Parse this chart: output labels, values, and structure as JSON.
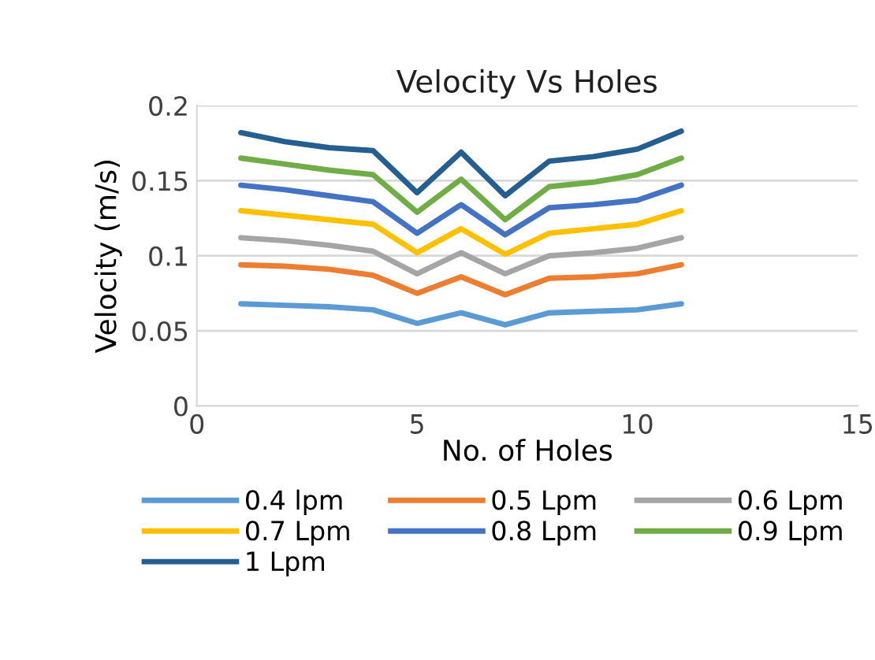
{
  "chart_data": {
    "type": "line",
    "title": "Velocity Vs Holes",
    "xlabel": "No. of Holes",
    "ylabel": "Velocity (m/s)",
    "x": [
      1,
      2,
      3,
      4,
      5,
      6,
      7,
      8,
      9,
      10,
      11
    ],
    "series": [
      {
        "name": "0.4 lpm",
        "color": "#5b9bd5",
        "values": [
          0.068,
          0.067,
          0.066,
          0.064,
          0.055,
          0.062,
          0.054,
          0.062,
          0.063,
          0.064,
          0.068
        ]
      },
      {
        "name": "0.5 Lpm",
        "color": "#ed7d31",
        "values": [
          0.094,
          0.093,
          0.091,
          0.087,
          0.075,
          0.086,
          0.074,
          0.085,
          0.086,
          0.088,
          0.094
        ]
      },
      {
        "name": "0.6 Lpm",
        "color": "#a5a5a5",
        "values": [
          0.112,
          0.11,
          0.107,
          0.103,
          0.088,
          0.102,
          0.088,
          0.1,
          0.102,
          0.105,
          0.112
        ]
      },
      {
        "name": "0.7 Lpm",
        "color": "#ffc000",
        "values": [
          0.13,
          0.127,
          0.124,
          0.121,
          0.102,
          0.118,
          0.101,
          0.115,
          0.118,
          0.121,
          0.13
        ]
      },
      {
        "name": "0.8 Lpm",
        "color": "#4472c4",
        "values": [
          0.147,
          0.144,
          0.14,
          0.136,
          0.115,
          0.134,
          0.114,
          0.132,
          0.134,
          0.137,
          0.147
        ]
      },
      {
        "name": "0.9 Lpm",
        "color": "#70ad47",
        "values": [
          0.165,
          0.161,
          0.157,
          0.154,
          0.129,
          0.151,
          0.124,
          0.146,
          0.149,
          0.154,
          0.165
        ]
      },
      {
        "name": "1 Lpm",
        "color": "#255e91",
        "values": [
          0.182,
          0.176,
          0.172,
          0.17,
          0.142,
          0.169,
          0.14,
          0.163,
          0.166,
          0.171,
          0.183
        ]
      }
    ],
    "xlim": [
      0,
      15
    ],
    "xticks": [
      0,
      5,
      10,
      15
    ],
    "ylim": [
      0,
      0.2
    ],
    "yticks": [
      0,
      0.05,
      0.1,
      0.15,
      0.2
    ],
    "grid": "y",
    "legend": "bottom",
    "marker": "none",
    "line_style": "solid"
  }
}
